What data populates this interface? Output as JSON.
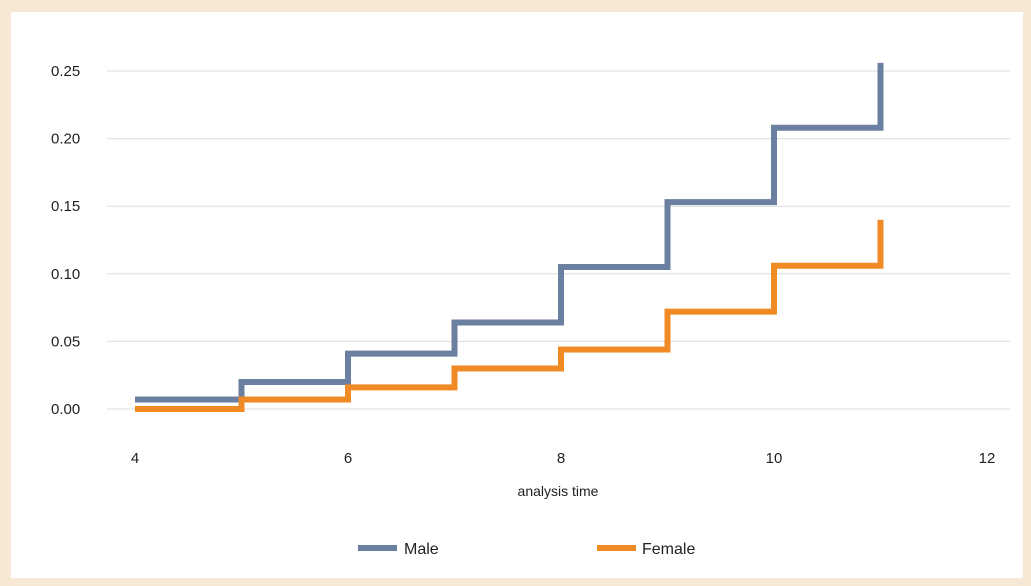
{
  "chart_data": {
    "type": "line",
    "step": true,
    "title": "",
    "xlabel": "analysis time",
    "ylabel": "",
    "xlim": [
      4,
      12
    ],
    "ylim": [
      0,
      0.25
    ],
    "xticks": [
      4,
      6,
      8,
      10,
      12
    ],
    "xtick_labels": [
      "4",
      "6",
      "8",
      "10",
      "12"
    ],
    "yticks": [
      0,
      0.05,
      0.1,
      0.15,
      0.2,
      0.25
    ],
    "ytick_labels": [
      "0.00",
      "0.05",
      "0.10",
      "0.15",
      "0.20",
      "0.25"
    ],
    "grid": "horizontal",
    "legend_position": "bottom",
    "series": [
      {
        "name": "Male",
        "color": "#6b7fa0",
        "x": [
          4,
          5,
          6,
          7,
          8,
          9,
          10,
          11,
          11
        ],
        "y": [
          0.007,
          0.02,
          0.041,
          0.064,
          0.105,
          0.153,
          0.208,
          0.208,
          0.256
        ]
      },
      {
        "name": "Female",
        "color": "#f08a24",
        "x": [
          4,
          5,
          6,
          7,
          8,
          9,
          10,
          11,
          11
        ],
        "y": [
          0.0,
          0.007,
          0.016,
          0.03,
          0.044,
          0.072,
          0.106,
          0.106,
          0.14
        ]
      }
    ]
  }
}
